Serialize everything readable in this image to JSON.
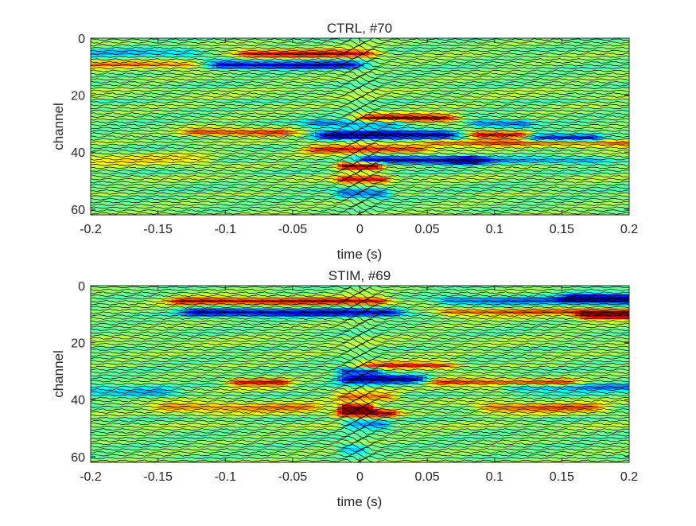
{
  "chart_data": [
    {
      "type": "heatmap",
      "title": "CTRL, #70",
      "xlabel": "time (s)",
      "ylabel": "channel",
      "xlim": [
        -0.2,
        0.2
      ],
      "ylim": [
        62,
        0
      ],
      "xticks": [
        "-0.2",
        "-0.15",
        "-0.1",
        "-0.05",
        "0",
        "0.05",
        "0.1",
        "0.15",
        "0.2"
      ],
      "yticks": [
        "0",
        "20",
        "40",
        "60"
      ],
      "n_channels": 63,
      "colormap": "jet",
      "trace_color": "#000000",
      "features": [
        {
          "channel": 5,
          "t0": -0.08,
          "t1": 0.0,
          "v": 0.8
        },
        {
          "channel": 5,
          "t0": -0.2,
          "t1": -0.13,
          "v": -0.4
        },
        {
          "channel": 9,
          "t0": -0.1,
          "t1": -0.01,
          "v": -0.8
        },
        {
          "channel": 9,
          "t0": -0.2,
          "t1": -0.13,
          "v": 0.5
        },
        {
          "channel": 28,
          "t0": 0.01,
          "t1": 0.06,
          "v": 0.95
        },
        {
          "channel": 30,
          "t0": -0.03,
          "t1": 0.02,
          "v": -0.5
        },
        {
          "channel": 30,
          "t0": 0.09,
          "t1": 0.12,
          "v": -0.5
        },
        {
          "channel": 33,
          "t0": -0.12,
          "t1": -0.06,
          "v": 0.65
        },
        {
          "channel": 34,
          "t0": -0.02,
          "t1": 0.06,
          "v": -1.0
        },
        {
          "channel": 34,
          "t0": 0.09,
          "t1": 0.12,
          "v": 0.85
        },
        {
          "channel": 35,
          "t0": 0.13,
          "t1": 0.17,
          "v": -0.75
        },
        {
          "channel": 37,
          "t0": 0.06,
          "t1": 0.2,
          "v": 0.5
        },
        {
          "channel": 39,
          "t0": -0.03,
          "t1": 0.04,
          "v": 0.7
        },
        {
          "channel": 43,
          "t0": 0.01,
          "t1": 0.08,
          "v": -0.85
        },
        {
          "channel": 43,
          "t0": 0.08,
          "t1": 0.17,
          "v": -0.35
        },
        {
          "channel": 43,
          "t0": -0.2,
          "t1": -0.12,
          "v": 0.35
        },
        {
          "channel": 45,
          "t0": -0.01,
          "t1": 0.01,
          "v": 1.0
        },
        {
          "channel": 50,
          "t0": -0.01,
          "t1": 0.015,
          "v": 0.75
        },
        {
          "channel": 55,
          "t0": -0.01,
          "t1": 0.015,
          "v": -0.6
        }
      ]
    },
    {
      "type": "heatmap",
      "title": "STIM, #69",
      "xlabel": "time (s)",
      "ylabel": "channel",
      "xlim": [
        -0.2,
        0.2
      ],
      "ylim": [
        62,
        0
      ],
      "xticks": [
        "-0.2",
        "-0.15",
        "-0.1",
        "-0.05",
        "0",
        "0.05",
        "0.1",
        "0.15",
        "0.2"
      ],
      "yticks": [
        "0",
        "20",
        "40",
        "60"
      ],
      "n_channels": 63,
      "colormap": "jet",
      "trace_color": "#000000",
      "features": [
        {
          "channel": 5,
          "t0": -0.13,
          "t1": 0.01,
          "v": 0.8
        },
        {
          "channel": 5,
          "t0": 0.07,
          "t1": 0.2,
          "v": -0.6
        },
        {
          "channel": 4,
          "t0": 0.16,
          "t1": 0.2,
          "v": -1.0
        },
        {
          "channel": 9,
          "t0": -0.12,
          "t1": 0.02,
          "v": -0.85
        },
        {
          "channel": 9,
          "t0": 0.07,
          "t1": 0.2,
          "v": 0.6
        },
        {
          "channel": 10,
          "t0": 0.17,
          "t1": 0.2,
          "v": 1.0
        },
        {
          "channel": 28,
          "t0": 0.01,
          "t1": 0.06,
          "v": 0.65
        },
        {
          "channel": 30,
          "t0": -0.01,
          "t1": 0.01,
          "v": -0.7
        },
        {
          "channel": 33,
          "t0": -0.005,
          "t1": 0.04,
          "v": -0.95
        },
        {
          "channel": 34,
          "t0": -0.09,
          "t1": -0.06,
          "v": 0.75
        },
        {
          "channel": 34,
          "t0": 0.06,
          "t1": 0.15,
          "v": 0.65
        },
        {
          "channel": 36,
          "t0": 0.12,
          "t1": 0.2,
          "v": -0.5
        },
        {
          "channel": 37,
          "t0": -0.2,
          "t1": -0.15,
          "v": -0.45
        },
        {
          "channel": 39,
          "t0": -0.01,
          "t1": 0.02,
          "v": 0.55
        },
        {
          "channel": 43,
          "t0": -0.14,
          "t1": -0.04,
          "v": 0.55
        },
        {
          "channel": 43,
          "t0": 0.1,
          "t1": 0.17,
          "v": 0.65
        },
        {
          "channel": 43,
          "t0": -0.01,
          "t1": 0.005,
          "v": 1.0
        },
        {
          "channel": 45,
          "t0": -0.01,
          "t1": 0.02,
          "v": 0.8
        },
        {
          "channel": 49,
          "t0": -0.005,
          "t1": 0.015,
          "v": -0.55
        },
        {
          "channel": 58,
          "t0": -0.01,
          "t1": 0.0,
          "v": -0.4
        }
      ]
    }
  ]
}
